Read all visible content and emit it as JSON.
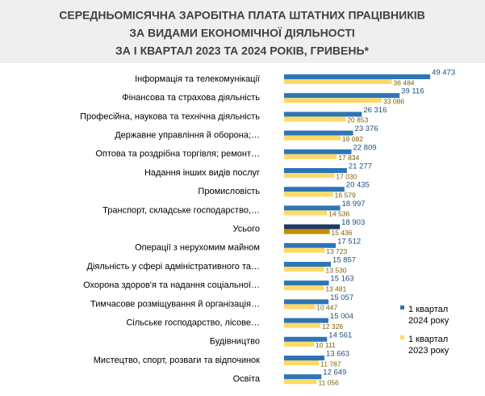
{
  "chart_data": {
    "type": "hbar",
    "title": [
      "СЕРЕДНЬОМІСЯЧНА ЗАРОБІТНА ПЛАТА ШТАТНИХ ПРАЦІВНИКІВ",
      "ЗА ВИДАМИ ЕКОНОМІЧНОЇ ДІЯЛЬНОСТІ",
      "ЗА І КВАРТАЛ 2023 ТА 2024 РОКІВ, ГРИВЕНЬ*"
    ],
    "categories": [
      "Інформація та телекомунікації",
      "Фінансова та страхова діяльність",
      "Професійна, наукова та технічна діяльність",
      "Державне управління й оборона;…",
      "Оптова та роздрібна торгівля; ремонт…",
      "Надання інших видів послуг",
      "Промисловість",
      "Транспорт, складське господарство,…",
      "Усього",
      "Операції з нерухомим майном",
      "Діяльність у сфері адміністративного та…",
      "Охорона здоров'я та надання соціальної…",
      "Тимчасове розміщування й організація…",
      "Сільське господарство, лісове…",
      "Будівництво",
      "Мистецтво, спорт, розваги та відпочинок",
      "Освіта"
    ],
    "series": [
      {
        "name": "1 квартал 2024 року",
        "color": "#2e75b6",
        "label_color": "#1f4e79",
        "colors": [
          "#2e75b6",
          "#2e75b6",
          "#2e75b6",
          "#2e75b6",
          "#2e75b6",
          "#2e75b6",
          "#2e75b6",
          "#2e75b6",
          "#1f3864",
          "#2e75b6",
          "#2e75b6",
          "#2e75b6",
          "#2e75b6",
          "#2e75b6",
          "#2e75b6",
          "#2e75b6",
          "#2e75b6"
        ],
        "values": [
          49473,
          39116,
          26316,
          23376,
          22809,
          21277,
          20435,
          18997,
          18903,
          17512,
          15857,
          15163,
          15057,
          15004,
          14561,
          13663,
          12649
        ],
        "value_labels": [
          "49 473",
          "39 116",
          "26 316",
          "23 376",
          "22 809",
          "21 277",
          "20 435",
          "18 997",
          "18 903",
          "17 512",
          "15 857",
          "15 163",
          "15 057",
          "15 004",
          "14 561",
          "13 663",
          "12 649"
        ]
      },
      {
        "name": "1 квартал 2023 року",
        "color": "#ffd966",
        "label_color": "#7f6000",
        "colors": [
          "#ffd966",
          "#ffd966",
          "#ffd966",
          "#ffd966",
          "#ffd966",
          "#ffd966",
          "#ffd966",
          "#ffd966",
          "#bf9000",
          "#ffd966",
          "#ffd966",
          "#ffd966",
          "#ffd966",
          "#ffd966",
          "#ffd966",
          "#ffd966",
          "#ffd966"
        ],
        "values": [
          36484,
          33086,
          20853,
          19082,
          17834,
          17030,
          16579,
          14536,
          15436,
          13723,
          13530,
          13481,
          10447,
          12326,
          10111,
          11787,
          11056
        ],
        "value_labels": [
          "36 484",
          "33 086",
          "20 853",
          "19 082",
          "17 834",
          "17 030",
          "16 579",
          "14 536",
          "15 436",
          "13 723",
          "13 530",
          "13 481",
          "10 447",
          "12 326",
          "10 111",
          "11 787",
          "11 056"
        ]
      }
    ],
    "xlim": [
      0,
      50000
    ]
  }
}
